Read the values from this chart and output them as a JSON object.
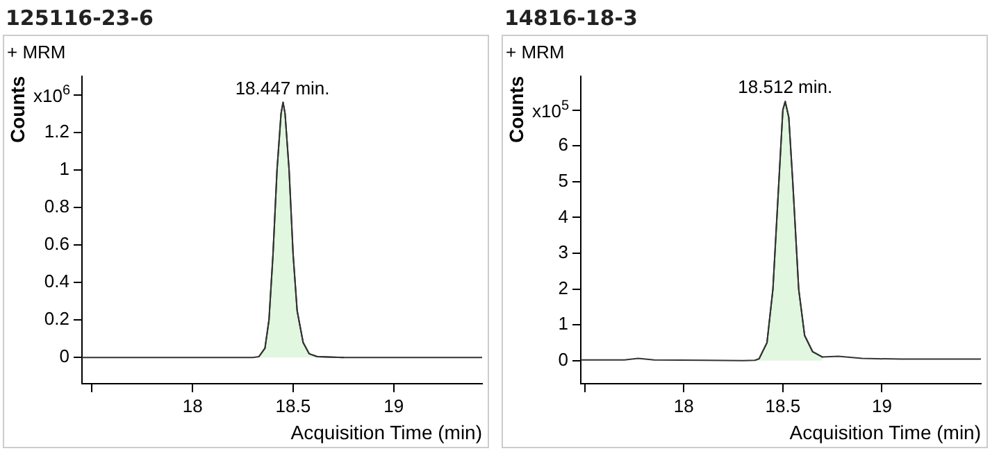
{
  "chart_data": [
    {
      "type": "line",
      "title": "125116-23-6",
      "xlabel": "Acquisition Time (min)",
      "ylabel": "Counts",
      "annotations": [
        "+ MRM",
        "x10$^{6}$",
        {
          "text": "18.447 min.",
          "x": 18.447,
          "y": 1.36
        }
      ],
      "xlim": [
        17.45,
        19.44
      ],
      "xticks": [
        {
          "value": 17.5,
          "label": null
        },
        18,
        18.5,
        19
      ],
      "ylim": [
        -0.14,
        1.5
      ],
      "yticks": [
        0,
        0.2,
        0.4,
        0.6,
        0.8,
        1,
        1.2,
        {
          "value": 1.4,
          "label": null
        }
      ],
      "grid": false,
      "legend": false,
      "marker": "none",
      "line_style": "solid",
      "series": [
        {
          "type": "line",
          "color": "#333333",
          "x": [
            17.45,
            18.3,
            18.33,
            18.36,
            18.38,
            18.4,
            18.42,
            18.44,
            18.45,
            18.46,
            18.48,
            18.5,
            18.52,
            18.55,
            18.58,
            18.62,
            18.75,
            19.44
          ],
          "values": [
            0,
            0,
            0.005,
            0.05,
            0.2,
            0.55,
            1.0,
            1.3,
            1.36,
            1.3,
            1.0,
            0.55,
            0.25,
            0.08,
            0.02,
            0.005,
            0,
            0
          ]
        },
        {
          "type": "area",
          "color": "#e1f7df",
          "x": [
            18.33,
            18.36,
            18.38,
            18.4,
            18.42,
            18.44,
            18.45,
            18.46,
            18.48,
            18.5,
            18.52,
            18.55,
            18.58,
            18.62,
            18.75
          ],
          "values": [
            0.005,
            0.05,
            0.2,
            0.55,
            1.0,
            1.3,
            1.36,
            1.3,
            1.0,
            0.55,
            0.25,
            0.08,
            0.02,
            0.005,
            0
          ]
        }
      ]
    },
    {
      "type": "line",
      "title": "14816-18-3",
      "xlabel": "Acquisition Time (min)",
      "ylabel": "Counts",
      "annotations": [
        "+ MRM",
        "x10$^{5}$",
        {
          "text": "18.512 min.",
          "x": 18.512,
          "y": 7.24
        }
      ],
      "xlim": [
        17.48,
        19.5
      ],
      "xticks": [
        {
          "value": 17.5,
          "label": null
        },
        18,
        18.5,
        19
      ],
      "ylim": [
        -0.65,
        7.95
      ],
      "yticks": [
        0,
        1,
        2,
        3,
        4,
        5,
        6,
        {
          "value": 7,
          "label": null
        }
      ],
      "grid": false,
      "legend": false,
      "marker": "none",
      "line_style": "solid",
      "series": [
        {
          "type": "line",
          "color": "#333333",
          "x": [
            17.48,
            17.7,
            17.77,
            17.85,
            18.3,
            18.36,
            18.38,
            18.42,
            18.45,
            18.48,
            18.5,
            18.512,
            18.53,
            18.55,
            18.58,
            18.61,
            18.65,
            18.7,
            18.78,
            18.9,
            19.1,
            19.5
          ],
          "values": [
            0.02,
            0.02,
            0.06,
            0.02,
            0,
            0.01,
            0.05,
            0.5,
            2.0,
            5.0,
            7.0,
            7.24,
            6.8,
            5.0,
            2.0,
            0.7,
            0.25,
            0.1,
            0.12,
            0.06,
            0.04,
            0.04
          ]
        },
        {
          "type": "area",
          "color": "#e1f7df",
          "x": [
            18.36,
            18.38,
            18.42,
            18.45,
            18.48,
            18.5,
            18.512,
            18.53,
            18.55,
            18.58,
            18.61,
            18.65,
            18.7
          ],
          "values": [
            0.01,
            0.05,
            0.5,
            2.0,
            5.0,
            7.0,
            7.24,
            6.8,
            5.0,
            2.0,
            0.7,
            0.25,
            0.1
          ]
        }
      ]
    }
  ]
}
